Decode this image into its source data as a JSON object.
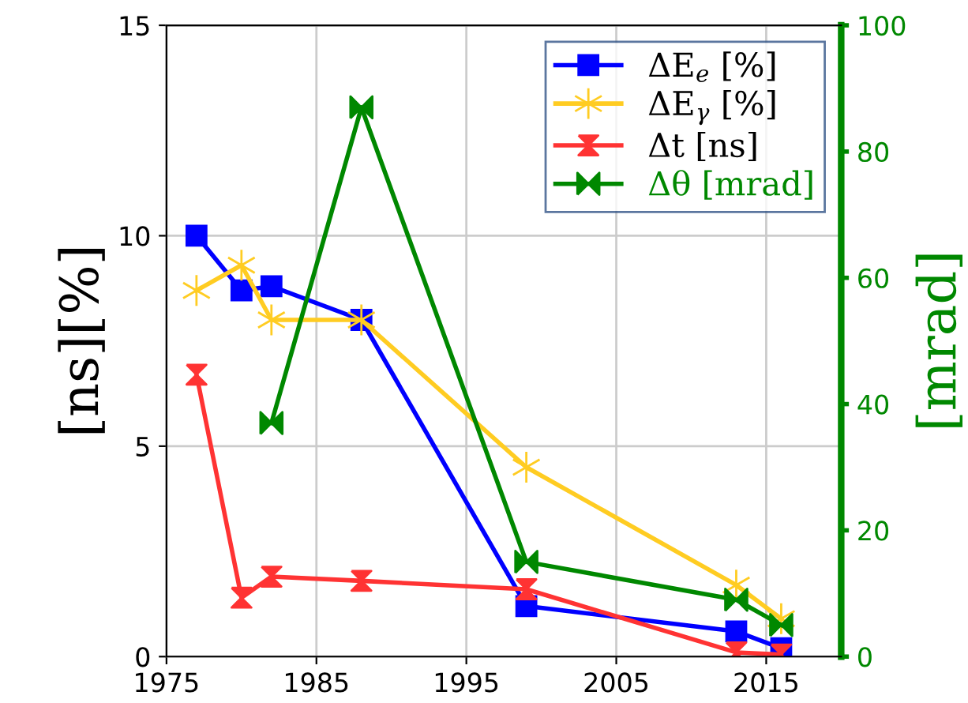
{
  "chart_data": {
    "type": "line",
    "ylabel": "[ns][%]",
    "y2label": "[mrad]",
    "xlim": [
      1975,
      2020
    ],
    "xticks": [
      1975,
      1985,
      1995,
      2005,
      2015
    ],
    "ylim": [
      0,
      15
    ],
    "yticks": [
      0,
      5,
      10,
      15
    ],
    "y2lim": [
      0,
      100
    ],
    "y2ticks": [
      0,
      20,
      40,
      60,
      80,
      100
    ],
    "grid": true,
    "legend": "top right",
    "series": [
      {
        "name": "ΔE$_{e}$ [%]",
        "color": "#0000ff",
        "marker": "square",
        "x": [
          1977,
          1980,
          1982,
          1988,
          1999,
          2013,
          2016
        ],
        "values": [
          10.0,
          8.7,
          8.8,
          8.0,
          1.2,
          0.6,
          0.2
        ]
      },
      {
        "name": "ΔE$_{γ}$ [%]",
        "color": "#ffcc22",
        "marker": "cross",
        "x": [
          1977,
          1980,
          1982,
          1988,
          1999,
          2013,
          2016
        ],
        "values": [
          8.7,
          9.3,
          8.0,
          8.0,
          4.5,
          1.7,
          0.9
        ]
      },
      {
        "name": "Δt [ns]",
        "color": "#ff3333",
        "marker": "triangle",
        "x": [
          1977,
          1980,
          1982,
          1988,
          1999,
          2013,
          2016
        ],
        "values": [
          6.7,
          1.4,
          1.9,
          1.8,
          1.6,
          0.1,
          0.05
        ]
      },
      {
        "name": "Δθ [mrad]",
        "color": "#008800",
        "marker": "triangle",
        "axis": "y2",
        "x": [
          1982,
          1988,
          1999,
          2013,
          2016
        ],
        "values": [
          37,
          87,
          15,
          9,
          5
        ]
      }
    ]
  }
}
